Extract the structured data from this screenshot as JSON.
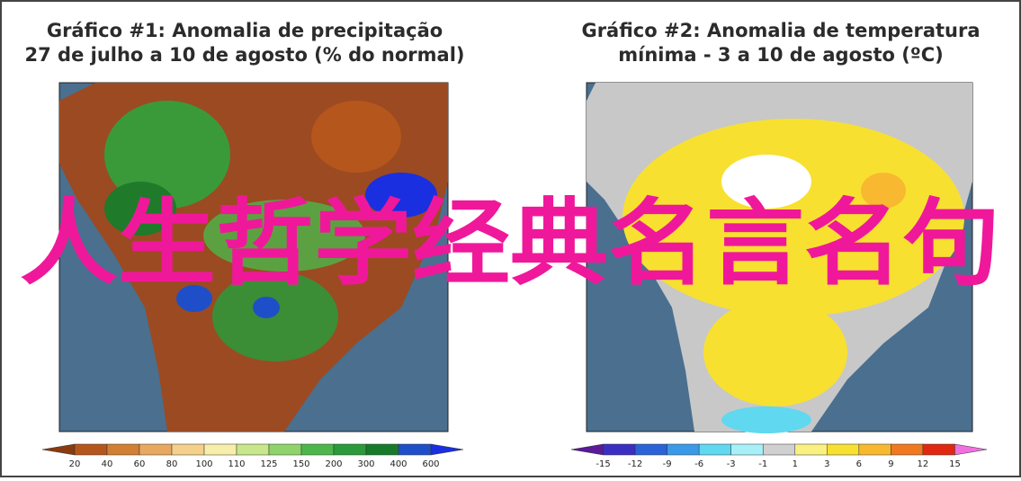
{
  "panels": [
    {
      "title_line1": "Gráfico #1: Anomalia de precipitação",
      "title_line2": "27 de julho a 10 de agosto (% do normal)",
      "colorbar": {
        "labels": [
          20,
          40,
          60,
          80,
          100,
          110,
          125,
          150,
          200,
          300,
          400,
          600
        ],
        "colors": [
          "#8b3a0f",
          "#b5561c",
          "#d17f33",
          "#e8a860",
          "#f5d08a",
          "#f7eeaa",
          "#c8e68a",
          "#8fd36a",
          "#4cb64a",
          "#2a9a3a",
          "#177a2a",
          "#1f4fc8",
          "#1a2fe0"
        ]
      }
    },
    {
      "title_line1": "Gráfico #2: Anomalia de temperatura",
      "title_line2": "mínima - 3 a 10 de agosto (ºC)",
      "colorbar": {
        "labels": [
          -15,
          -12,
          -9,
          -6,
          -3,
          -1,
          1,
          3,
          6,
          9,
          12,
          15
        ],
        "colors": [
          "#5a1a9a",
          "#3a2fc0",
          "#2a62d8",
          "#3a9ae8",
          "#60d8f0",
          "#a8f0f8",
          "#d0d0d0",
          "#f8f080",
          "#f8e030",
          "#f8b830",
          "#f07820",
          "#e02810",
          "#f070e0"
        ]
      }
    }
  ],
  "overlay_text": "人生哲学经典名言名句"
}
